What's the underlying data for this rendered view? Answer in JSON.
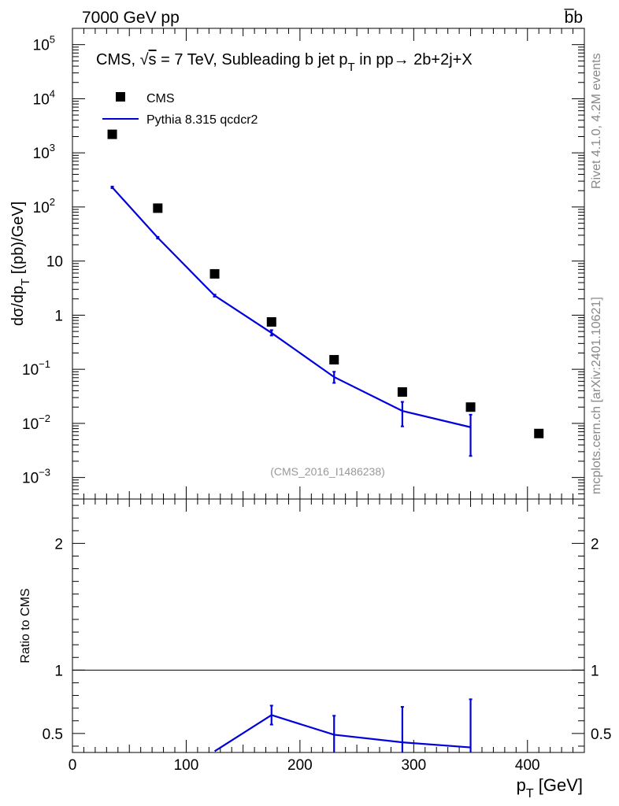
{
  "header": {
    "left": "7000 GeV pp",
    "right": "b̅b"
  },
  "side_text": {
    "rivet": "Rivet 4.1.0,  4.2M events",
    "mcplots": "mcplots.cern.ch [arXiv:2401.10621]"
  },
  "chart_data": [
    {
      "type": "scatter",
      "title_parts": {
        "pre": "CMS, ",
        "sqrt": "s",
        "mid": " = 7 TeV, Subleading b jet p",
        "sub": "T",
        "post": " in pp→  2b+2j+X"
      },
      "ylabel": "dσ/dp_T [(pb)/GeV]",
      "ylabel_parts": {
        "main": "dσ/dp",
        "sub": "T",
        "tail": " [(pb)/GeV]"
      },
      "yscale": "log",
      "ylim": [
        0.0004,
        200000
      ],
      "xlim": [
        0,
        450
      ],
      "analysis_label": "(CMS_2016_I1486238)",
      "ytick_labels": [
        {
          "value": 0.001,
          "base": "10",
          "exp": "−3"
        },
        {
          "value": 0.01,
          "base": "10",
          "exp": "−2"
        },
        {
          "value": 0.1,
          "base": "10",
          "exp": "−1"
        },
        {
          "value": 1,
          "base": "1",
          "exp": ""
        },
        {
          "value": 10,
          "base": "10",
          "exp": ""
        },
        {
          "value": 100,
          "base": "10",
          "exp": "2"
        },
        {
          "value": 1000,
          "base": "10",
          "exp": "3"
        },
        {
          "value": 10000,
          "base": "10",
          "exp": "4"
        },
        {
          "value": 100000,
          "base": "10",
          "exp": "5"
        }
      ],
      "legend": [
        {
          "name": "CMS",
          "marker": "square",
          "color": "#000000"
        },
        {
          "name": "Pythia 8.315 qcdcr2",
          "marker": "line",
          "color": "#0000dd"
        }
      ],
      "series": [
        {
          "name": "CMS",
          "x": [
            35,
            75,
            125,
            175,
            230,
            290,
            350,
            410
          ],
          "y": [
            2200,
            95,
            5.8,
            0.75,
            0.15,
            0.038,
            0.02,
            0.0065
          ]
        },
        {
          "name": "Pythia 8.315 qcdcr2",
          "x": [
            35,
            75,
            125,
            175,
            230,
            290,
            350
          ],
          "y": [
            230,
            27,
            2.3,
            0.47,
            0.072,
            0.017,
            0.0085
          ],
          "err_lo": [
            222,
            26,
            2.2,
            0.42,
            0.056,
            0.0088,
            0.0025
          ],
          "err_hi": [
            238,
            28,
            2.4,
            0.53,
            0.09,
            0.025,
            0.0145
          ]
        }
      ]
    },
    {
      "type": "line",
      "ylabel": "Ratio to CMS",
      "ylim": [
        0.35,
        2.35
      ],
      "xlim": [
        0,
        450
      ],
      "xlabel_parts": {
        "main": "p",
        "sub": "T",
        "tail": " [GeV]"
      },
      "xtick_labels": [
        "0",
        "100",
        "200",
        "300",
        "400"
      ],
      "xtick_values": [
        0,
        100,
        200,
        300,
        400
      ],
      "ytick_labels": [
        "0.5",
        "1",
        "2"
      ],
      "ytick_values": [
        0.5,
        1,
        2
      ],
      "reference": 1,
      "series": [
        {
          "name": "Pythia 8.315 qcdcr2",
          "x": [
            125,
            175,
            230,
            290,
            350
          ],
          "y": [
            0.36,
            0.645,
            0.49,
            0.43,
            0.39
          ],
          "err_lo": [
            0.36,
            0.57,
            0.35,
            0.3,
            0.3
          ],
          "err_hi": [
            0.36,
            0.72,
            0.64,
            0.71,
            0.77
          ]
        }
      ]
    }
  ]
}
